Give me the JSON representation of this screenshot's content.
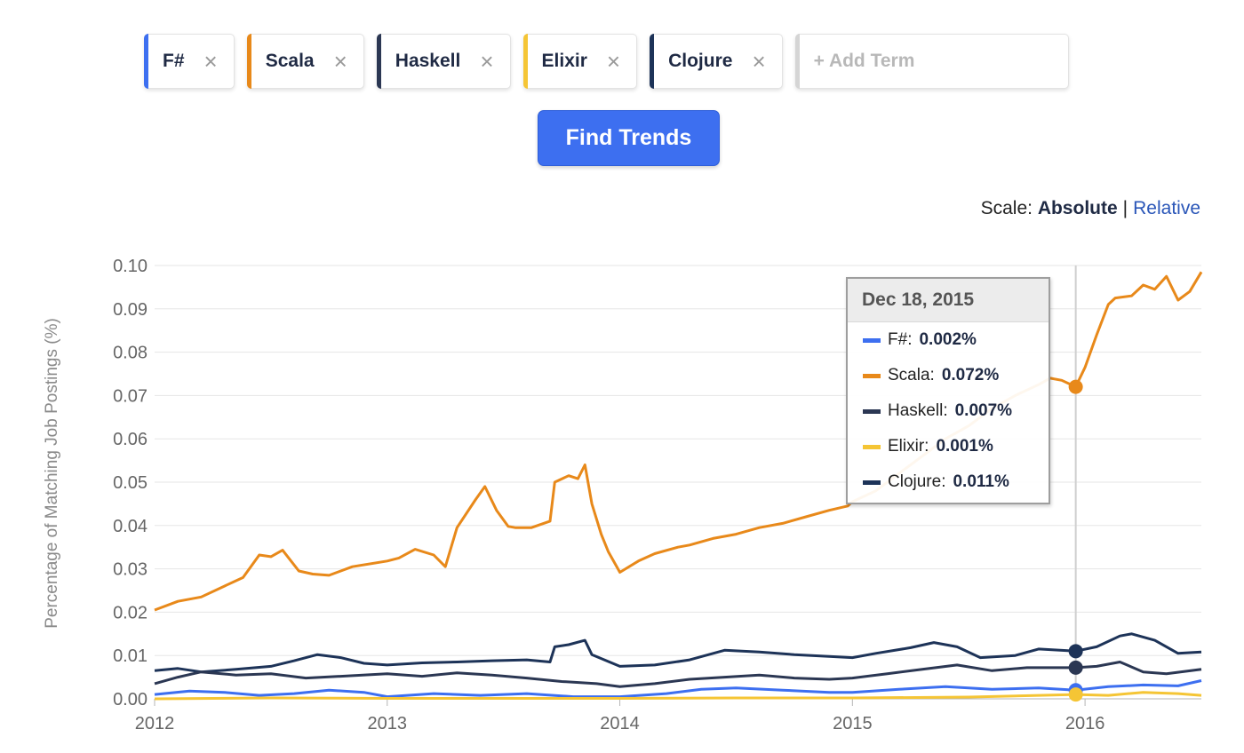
{
  "terms": [
    {
      "label": "F#",
      "color": "#3d6ff0"
    },
    {
      "label": "Scala",
      "color": "#e8891a"
    },
    {
      "label": "Haskell",
      "color": "#2b3753"
    },
    {
      "label": "Elixir",
      "color": "#f5c535"
    },
    {
      "label": "Clojure",
      "color": "#1d3358"
    }
  ],
  "remove_glyph": "×",
  "add_term": {
    "placeholder": "+ Add Term",
    "value": ""
  },
  "find_button": "Find Trends",
  "scale": {
    "label": "Scale:",
    "selected": "Absolute",
    "separator": "|",
    "other": "Relative"
  },
  "tooltip": {
    "date": "Dec 18, 2015",
    "rows": [
      {
        "name": "F#",
        "value": "0.002%",
        "color": "#3d6ff0"
      },
      {
        "name": "Scala",
        "value": "0.072%",
        "color": "#e8891a"
      },
      {
        "name": "Haskell",
        "value": "0.007%",
        "color": "#2b3753"
      },
      {
        "name": "Elixir",
        "value": "0.001%",
        "color": "#f5c535"
      },
      {
        "name": "Clojure",
        "value": "0.011%",
        "color": "#1d3358"
      }
    ]
  },
  "chart_data": {
    "type": "line",
    "xlabel": "",
    "ylabel": "Percentage of Matching Job Postings (%)",
    "xlim": [
      2012.0,
      2016.5
    ],
    "ylim": [
      0,
      0.1
    ],
    "grid": true,
    "x_ticks": [
      "2012",
      "2013",
      "2014",
      "2015",
      "2016"
    ],
    "y_ticks": [
      "0.00",
      "0.01",
      "0.02",
      "0.03",
      "0.04",
      "0.05",
      "0.06",
      "0.07",
      "0.08",
      "0.09",
      "0.10"
    ],
    "hover_x": 2015.96,
    "series": [
      {
        "name": "Scala",
        "color": "#e8891a",
        "x": [
          2012.0,
          2012.1,
          2012.2,
          2012.3,
          2012.38,
          2012.45,
          2012.5,
          2012.55,
          2012.62,
          2012.68,
          2012.75,
          2012.85,
          2013.0,
          2013.05,
          2013.12,
          2013.2,
          2013.25,
          2013.3,
          2013.38,
          2013.42,
          2013.47,
          2013.52,
          2013.55,
          2013.62,
          2013.7,
          2013.72,
          2013.78,
          2013.82,
          2013.85,
          2013.88,
          2013.92,
          2013.95,
          2014.0,
          2014.08,
          2014.15,
          2014.25,
          2014.3,
          2014.4,
          2014.5,
          2014.6,
          2014.7,
          2014.8,
          2014.9,
          2014.98,
          2015.0,
          2015.1,
          2015.2,
          2015.3,
          2015.4,
          2015.5,
          2015.6,
          2015.7,
          2015.8,
          2015.85,
          2015.9,
          2015.96,
          2016.0,
          2016.05,
          2016.1,
          2016.13,
          2016.2,
          2016.25,
          2016.3,
          2016.35,
          2016.4,
          2016.45,
          2016.5
        ],
        "y": [
          0.0205,
          0.0225,
          0.0235,
          0.026,
          0.028,
          0.0332,
          0.0328,
          0.0343,
          0.0295,
          0.0288,
          0.0285,
          0.0305,
          0.0318,
          0.0325,
          0.0345,
          0.0332,
          0.0305,
          0.0395,
          0.046,
          0.049,
          0.0435,
          0.0398,
          0.0395,
          0.0395,
          0.041,
          0.05,
          0.0515,
          0.0508,
          0.054,
          0.045,
          0.038,
          0.034,
          0.0292,
          0.0318,
          0.0335,
          0.035,
          0.0355,
          0.037,
          0.038,
          0.0395,
          0.0405,
          0.042,
          0.0435,
          0.0445,
          0.0455,
          0.048,
          0.052,
          0.056,
          0.06,
          0.063,
          0.067,
          0.07,
          0.0725,
          0.074,
          0.0735,
          0.072,
          0.0765,
          0.084,
          0.091,
          0.0925,
          0.093,
          0.0955,
          0.0945,
          0.0975,
          0.092,
          0.094,
          0.0985
        ]
      },
      {
        "name": "Clojure",
        "color": "#1d3358",
        "x": [
          2012.0,
          2012.1,
          2012.2,
          2012.35,
          2012.5,
          2012.6,
          2012.7,
          2012.8,
          2012.9,
          2013.0,
          2013.15,
          2013.3,
          2013.45,
          2013.6,
          2013.7,
          2013.72,
          2013.78,
          2013.85,
          2013.88,
          2014.0,
          2014.15,
          2014.3,
          2014.45,
          2014.6,
          2014.75,
          2014.9,
          2015.0,
          2015.1,
          2015.25,
          2015.35,
          2015.45,
          2015.55,
          2015.7,
          2015.8,
          2015.96,
          2016.05,
          2016.15,
          2016.2,
          2016.3,
          2016.4,
          2016.5
        ],
        "y": [
          0.0065,
          0.007,
          0.0062,
          0.0068,
          0.0075,
          0.0088,
          0.0102,
          0.0095,
          0.0082,
          0.0078,
          0.0083,
          0.0085,
          0.0088,
          0.009,
          0.0085,
          0.012,
          0.0125,
          0.0135,
          0.0102,
          0.0075,
          0.0078,
          0.009,
          0.0112,
          0.0108,
          0.0102,
          0.0098,
          0.0095,
          0.0105,
          0.0118,
          0.013,
          0.012,
          0.0095,
          0.01,
          0.0115,
          0.011,
          0.012,
          0.0145,
          0.015,
          0.0135,
          0.0105,
          0.0108
        ]
      },
      {
        "name": "Haskell",
        "color": "#2b3753",
        "x": [
          2012.0,
          2012.1,
          2012.2,
          2012.35,
          2012.5,
          2012.65,
          2012.8,
          2013.0,
          2013.15,
          2013.3,
          2013.45,
          2013.6,
          2013.75,
          2013.9,
          2014.0,
          2014.15,
          2014.3,
          2014.45,
          2014.6,
          2014.75,
          2014.9,
          2015.0,
          2015.15,
          2015.3,
          2015.45,
          2015.6,
          2015.75,
          2015.96,
          2016.05,
          2016.15,
          2016.25,
          2016.35,
          2016.5
        ],
        "y": [
          0.0035,
          0.005,
          0.0062,
          0.0055,
          0.0058,
          0.0048,
          0.0052,
          0.0058,
          0.0052,
          0.006,
          0.0055,
          0.0048,
          0.004,
          0.0035,
          0.0028,
          0.0035,
          0.0045,
          0.005,
          0.0055,
          0.0048,
          0.0045,
          0.0048,
          0.0058,
          0.0068,
          0.0078,
          0.0065,
          0.0072,
          0.0072,
          0.0075,
          0.0085,
          0.0062,
          0.0058,
          0.0068
        ]
      },
      {
        "name": "F#",
        "color": "#3d6ff0",
        "x": [
          2012.0,
          2012.15,
          2012.3,
          2012.45,
          2012.6,
          2012.75,
          2012.9,
          2013.0,
          2013.2,
          2013.4,
          2013.6,
          2013.8,
          2014.0,
          2014.2,
          2014.35,
          2014.5,
          2014.7,
          2014.9,
          2015.0,
          2015.2,
          2015.4,
          2015.6,
          2015.8,
          2015.96,
          2016.1,
          2016.25,
          2016.4,
          2016.5
        ],
        "y": [
          0.001,
          0.0018,
          0.0015,
          0.0008,
          0.0012,
          0.002,
          0.0015,
          0.0005,
          0.0012,
          0.0008,
          0.0012,
          0.0005,
          0.0005,
          0.0012,
          0.0022,
          0.0025,
          0.002,
          0.0015,
          0.0015,
          0.0022,
          0.0028,
          0.0022,
          0.0025,
          0.002,
          0.0028,
          0.0032,
          0.003,
          0.0042
        ]
      },
      {
        "name": "Elixir",
        "color": "#f5c535",
        "x": [
          2012.0,
          2012.5,
          2013.0,
          2013.5,
          2014.0,
          2014.5,
          2015.0,
          2015.5,
          2015.8,
          2015.96,
          2016.1,
          2016.25,
          2016.4,
          2016.5
        ],
        "y": [
          0.0,
          0.0002,
          0.0001,
          0.0001,
          0.0001,
          0.0002,
          0.0002,
          0.0004,
          0.0008,
          0.001,
          0.0008,
          0.0015,
          0.0012,
          0.0008
        ]
      }
    ]
  }
}
